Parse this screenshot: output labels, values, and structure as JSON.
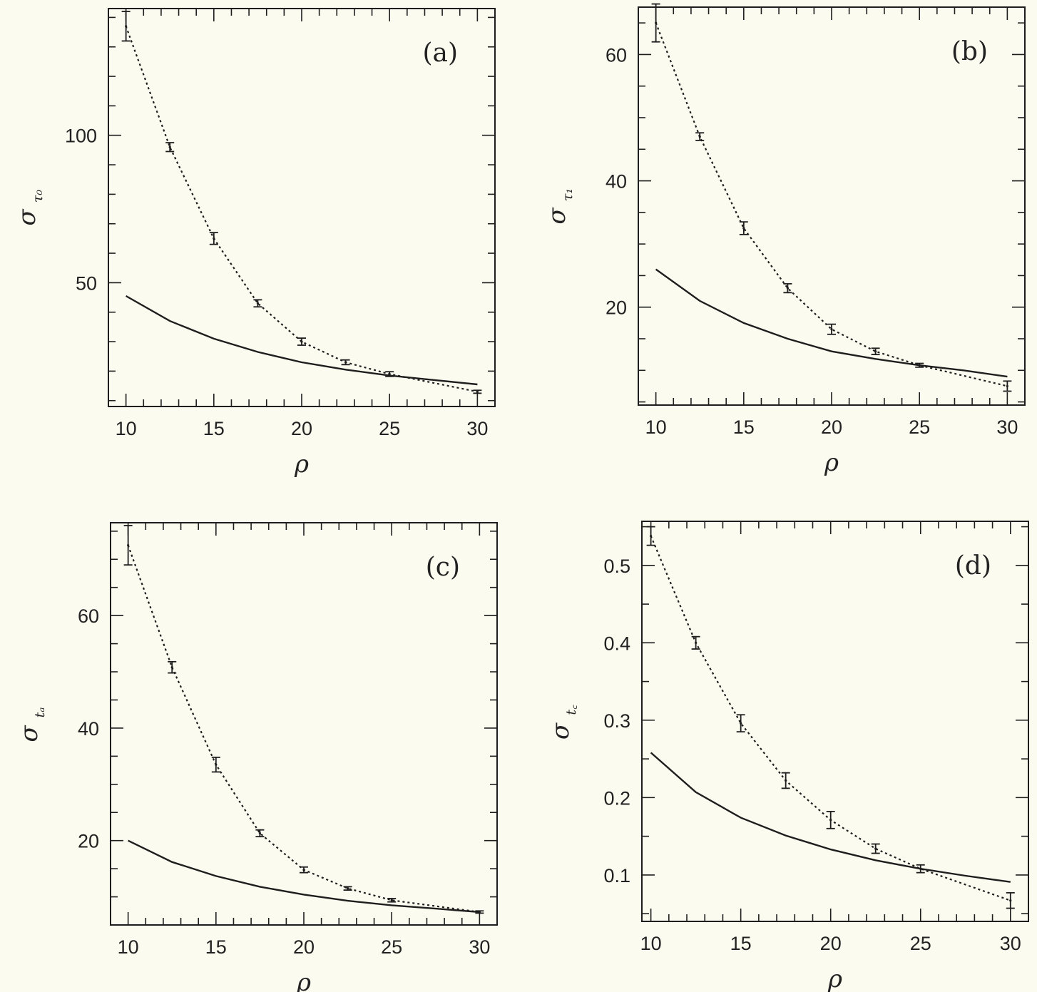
{
  "chart_data": [
    {
      "type": "line",
      "panel_label": "(a)",
      "xlabel": "ρ",
      "ylabel": {
        "symbol": "σ",
        "subscript": "τ₀"
      },
      "xlim": [
        9,
        31
      ],
      "ylim": [
        8,
        143
      ],
      "xticks": [
        10,
        15,
        20,
        25,
        30
      ],
      "yticks": [
        50,
        100
      ],
      "series": [
        {
          "style": "solid",
          "x": [
            10,
            12.5,
            15,
            17.5,
            20,
            22.5,
            25,
            27.5,
            30
          ],
          "y": [
            45.5,
            37,
            31,
            26.5,
            23,
            20.5,
            18.5,
            17,
            15.5
          ]
        },
        {
          "style": "dotted",
          "x": [
            10,
            12.5,
            15,
            17.5,
            20,
            22.5,
            25,
            30
          ],
          "y": [
            137,
            96,
            65,
            43,
            30,
            23,
            19,
            13
          ],
          "yerr": [
            5,
            1.5,
            2,
            1.2,
            1.2,
            0.8,
            0.8,
            0.5
          ]
        }
      ]
    },
    {
      "type": "line",
      "panel_label": "(b)",
      "xlabel": "ρ",
      "ylabel": {
        "symbol": "σ",
        "subscript": "τ₁"
      },
      "xlim": [
        9,
        31
      ],
      "ylim": [
        4.5,
        67.5
      ],
      "xticks": [
        10,
        15,
        20,
        25,
        30
      ],
      "yticks": [
        20,
        40,
        60
      ],
      "series": [
        {
          "style": "solid",
          "x": [
            10,
            12.5,
            15,
            17.5,
            20,
            22.5,
            25,
            27.5,
            30
          ],
          "y": [
            26,
            21,
            17.5,
            15,
            13,
            11.8,
            10.8,
            10,
            9
          ]
        },
        {
          "style": "dotted",
          "x": [
            10,
            12.5,
            15,
            17.5,
            20,
            22.5,
            25,
            30
          ],
          "y": [
            65,
            47,
            32.5,
            23,
            16.5,
            13,
            10.8,
            7.5
          ],
          "yerr": [
            3,
            0.6,
            1,
            0.7,
            0.8,
            0.5,
            0.3,
            0.8
          ]
        }
      ]
    },
    {
      "type": "line",
      "panel_label": "(c)",
      "xlabel": "ρ",
      "ylabel": {
        "symbol": "σ",
        "subscript": "tₐ"
      },
      "xlim": [
        9,
        31
      ],
      "ylim": [
        5,
        76.5
      ],
      "xticks": [
        10,
        15,
        20,
        25,
        30
      ],
      "yticks": [
        20,
        40,
        60
      ],
      "series": [
        {
          "style": "solid",
          "x": [
            10,
            12.5,
            15,
            17.5,
            20,
            22.5,
            25,
            27.5,
            30
          ],
          "y": [
            20,
            16.2,
            13.7,
            11.8,
            10.4,
            9.3,
            8.5,
            7.9,
            7.3
          ]
        },
        {
          "style": "dotted",
          "x": [
            10,
            12.5,
            15,
            17.5,
            20,
            22.5,
            25,
            30
          ],
          "y": [
            72.5,
            50.8,
            33.5,
            21.3,
            14.8,
            11.5,
            9.4,
            7.3
          ],
          "yerr": [
            3.5,
            1,
            1.3,
            0.6,
            0.5,
            0.3,
            0.3,
            0.2
          ]
        }
      ]
    },
    {
      "type": "line",
      "panel_label": "(d)",
      "xlabel": "ρ",
      "ylabel": {
        "symbol": "σ",
        "subscript": "t꜀"
      },
      "xlim": [
        9.5,
        31
      ],
      "ylim": [
        0.04,
        0.557
      ],
      "xticks": [
        10,
        15,
        20,
        25,
        30
      ],
      "yticks": [
        0.1,
        0.2,
        0.3,
        0.4,
        0.5
      ],
      "series": [
        {
          "style": "solid",
          "x": [
            10,
            12.5,
            15,
            17.5,
            20,
            22.5,
            25,
            27.5,
            30
          ],
          "y": [
            0.258,
            0.207,
            0.174,
            0.151,
            0.133,
            0.119,
            0.108,
            0.099,
            0.091
          ]
        },
        {
          "style": "dotted",
          "x": [
            10,
            12.5,
            15,
            17.5,
            20,
            22.5,
            25,
            30
          ],
          "y": [
            0.538,
            0.4,
            0.296,
            0.222,
            0.171,
            0.134,
            0.108,
            0.067
          ],
          "yerr": [
            0.012,
            0.008,
            0.011,
            0.01,
            0.011,
            0.006,
            0.005,
            0.01
          ]
        }
      ]
    }
  ]
}
